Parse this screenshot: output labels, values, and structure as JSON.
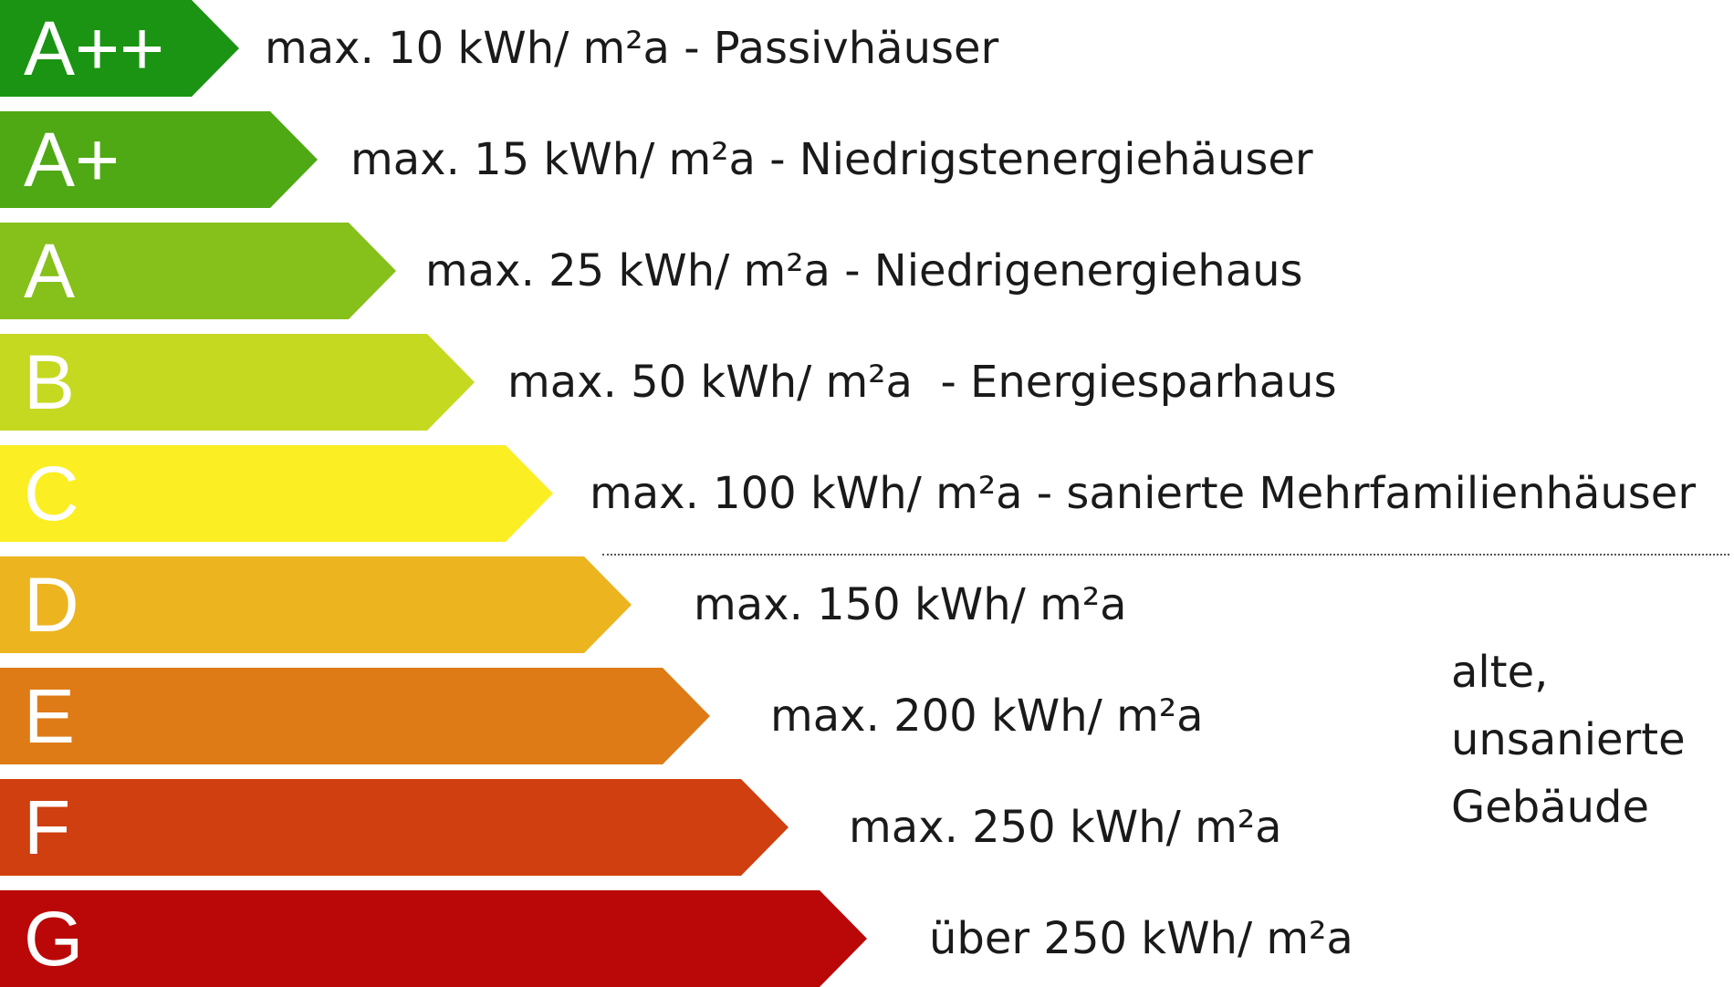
{
  "rows": [
    {
      "class": "A++",
      "text": "max. 10 kWh/ m²a - Passivhäuser",
      "color": "#1a9412"
    },
    {
      "class": "A+",
      "text": "max. 15 kWh/ m²a - Niedrigstenergiehäuser",
      "color": "#4ea914"
    },
    {
      "class": "A",
      "text": "max. 25 kWh/ m²a - Niedrigenergiehaus",
      "color": "#86c01a"
    },
    {
      "class": "B",
      "text": "max. 50 kWh/ m²a  - Energiesparhaus",
      "color": "#c5d920"
    },
    {
      "class": "C",
      "text": "max. 100 kWh/ m²a - sanierte Mehrfamilienhäuser",
      "color": "#fbee23"
    },
    {
      "class": "D",
      "text": "max. 150 kWh/ m²a",
      "color": "#ecb41f"
    },
    {
      "class": "E",
      "text": "max. 200 kWh/ m²a",
      "color": "#de7b16"
    },
    {
      "class": "F",
      "text": "max. 250 kWh/ m²a",
      "color": "#cf3f0f"
    },
    {
      "class": "G",
      "text": "über 250 kWh/ m²a",
      "color": "#ba0808"
    }
  ],
  "note": {
    "lines": [
      "alte,",
      "unsanierte",
      "Gebäude"
    ]
  }
}
